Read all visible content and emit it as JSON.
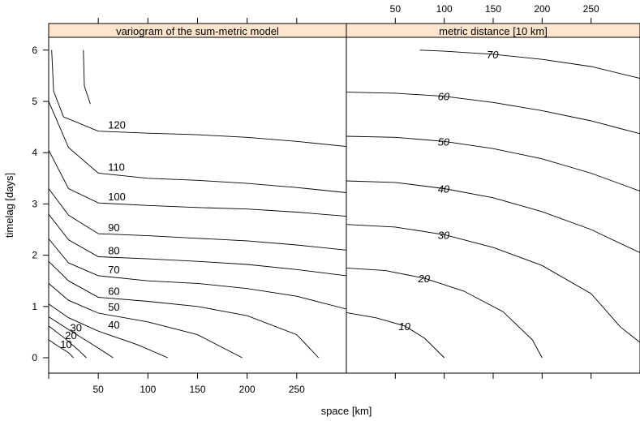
{
  "chart_data": [
    {
      "type": "contour",
      "title": "variogram of the sum-metric model",
      "xlabel": "space [km]",
      "ylabel": "timelag [days]",
      "xlim": [
        0,
        300
      ],
      "ylim": [
        -0.3,
        6.25
      ],
      "x_ticks": [
        50,
        100,
        150,
        200,
        250
      ],
      "y_ticks": [
        0,
        1,
        2,
        3,
        4,
        5,
        6
      ],
      "levels": [
        {
          "label": "10",
          "points": [
            [
              0,
              0.35
            ],
            [
              10,
              0.22
            ],
            [
              20,
              0.1
            ],
            [
              25,
              0
            ]
          ]
        },
        {
          "label": "20",
          "points": [
            [
              0,
              0.62
            ],
            [
              15,
              0.4
            ],
            [
              30,
              0.15
            ],
            [
              38,
              0
            ]
          ]
        },
        {
          "label": "30",
          "points": [
            [
              0,
              0.8
            ],
            [
              20,
              0.55
            ],
            [
              45,
              0.25
            ],
            [
              65,
              0
            ]
          ]
        },
        {
          "label": "40",
          "points": [
            [
              0,
              1.05
            ],
            [
              20,
              0.78
            ],
            [
              50,
              0.52
            ],
            [
              90,
              0.25
            ],
            [
              120,
              0
            ]
          ]
        },
        {
          "label": "50",
          "points": [
            [
              0,
              1.45
            ],
            [
              20,
              1.12
            ],
            [
              50,
              0.87
            ],
            [
              100,
              0.7
            ],
            [
              150,
              0.45
            ],
            [
              195,
              0
            ]
          ]
        },
        {
          "label": "60",
          "points": [
            [
              0,
              1.88
            ],
            [
              20,
              1.5
            ],
            [
              50,
              1.18
            ],
            [
              100,
              1.1
            ],
            [
              150,
              1.0
            ],
            [
              200,
              0.82
            ],
            [
              250,
              0.45
            ],
            [
              272,
              0
            ]
          ]
        },
        {
          "label": "70",
          "points": [
            [
              0,
              2.32
            ],
            [
              20,
              1.85
            ],
            [
              50,
              1.6
            ],
            [
              100,
              1.5
            ],
            [
              150,
              1.45
            ],
            [
              200,
              1.35
            ],
            [
              250,
              1.2
            ],
            [
              300,
              0.95
            ]
          ]
        },
        {
          "label": "80",
          "points": [
            [
              0,
              2.8
            ],
            [
              20,
              2.3
            ],
            [
              50,
              1.97
            ],
            [
              100,
              1.93
            ],
            [
              150,
              1.88
            ],
            [
              200,
              1.82
            ],
            [
              250,
              1.72
            ],
            [
              300,
              1.6
            ]
          ]
        },
        {
          "label": "90",
          "points": [
            [
              0,
              3.3
            ],
            [
              20,
              2.78
            ],
            [
              50,
              2.42
            ],
            [
              100,
              2.38
            ],
            [
              150,
              2.33
            ],
            [
              200,
              2.28
            ],
            [
              250,
              2.2
            ],
            [
              300,
              2.1
            ]
          ]
        },
        {
          "label": "100",
          "points": [
            [
              0,
              4.05
            ],
            [
              20,
              3.3
            ],
            [
              50,
              3.02
            ],
            [
              100,
              2.97
            ],
            [
              150,
              2.93
            ],
            [
              200,
              2.9
            ],
            [
              250,
              2.84
            ],
            [
              300,
              2.76
            ]
          ]
        },
        {
          "label": "110",
          "points": [
            [
              0,
              5.0
            ],
            [
              20,
              4.1
            ],
            [
              50,
              3.6
            ],
            [
              100,
              3.5
            ],
            [
              150,
              3.46
            ],
            [
              200,
              3.4
            ],
            [
              250,
              3.32
            ],
            [
              300,
              3.22
            ]
          ]
        },
        {
          "label": "120",
          "points": [
            [
              3,
              6.0
            ],
            [
              5,
              5.2
            ],
            [
              15,
              4.7
            ],
            [
              50,
              4.42
            ],
            [
              100,
              4.38
            ],
            [
              150,
              4.35
            ],
            [
              200,
              4.3
            ],
            [
              250,
              4.22
            ],
            [
              300,
              4.12
            ]
          ]
        },
        {
          "label": "",
          "points": [
            [
              35,
              6.0
            ],
            [
              36,
              5.3
            ],
            [
              42,
              4.95
            ]
          ]
        }
      ]
    },
    {
      "type": "contour",
      "title": "metric distance [10 km]",
      "xlabel": "space [km]",
      "xlim": [
        0,
        300
      ],
      "ylim": [
        -0.3,
        6.25
      ],
      "x_ticks": [
        50,
        100,
        150,
        200,
        250
      ],
      "levels": [
        {
          "label": "10",
          "points": [
            [
              0,
              0.88
            ],
            [
              30,
              0.78
            ],
            [
              60,
              0.62
            ],
            [
              80,
              0.38
            ],
            [
              100,
              0
            ]
          ]
        },
        {
          "label": "20",
          "points": [
            [
              0,
              1.75
            ],
            [
              40,
              1.7
            ],
            [
              80,
              1.55
            ],
            [
              120,
              1.3
            ],
            [
              160,
              0.9
            ],
            [
              190,
              0.35
            ],
            [
              200,
              0
            ]
          ]
        },
        {
          "label": "30",
          "points": [
            [
              0,
              2.6
            ],
            [
              50,
              2.55
            ],
            [
              100,
              2.4
            ],
            [
              150,
              2.15
            ],
            [
              200,
              1.8
            ],
            [
              250,
              1.25
            ],
            [
              280,
              0.6
            ],
            [
              300,
              0.3
            ]
          ]
        },
        {
          "label": "40",
          "points": [
            [
              0,
              3.45
            ],
            [
              50,
              3.42
            ],
            [
              100,
              3.3
            ],
            [
              150,
              3.12
            ],
            [
              200,
              2.85
            ],
            [
              250,
              2.5
            ],
            [
              300,
              2.05
            ]
          ]
        },
        {
          "label": "50",
          "points": [
            [
              0,
              4.32
            ],
            [
              50,
              4.3
            ],
            [
              100,
              4.22
            ],
            [
              150,
              4.08
            ],
            [
              200,
              3.88
            ],
            [
              250,
              3.6
            ],
            [
              300,
              3.25
            ]
          ]
        },
        {
          "label": "60",
          "points": [
            [
              0,
              5.18
            ],
            [
              50,
              5.16
            ],
            [
              100,
              5.1
            ],
            [
              150,
              4.98
            ],
            [
              200,
              4.82
            ],
            [
              250,
              4.62
            ],
            [
              300,
              4.37
            ]
          ]
        },
        {
          "label": "70",
          "points": [
            [
              75,
              6.0
            ],
            [
              100,
              5.98
            ],
            [
              150,
              5.92
            ],
            [
              200,
              5.82
            ],
            [
              250,
              5.68
            ],
            [
              300,
              5.45
            ]
          ]
        }
      ]
    }
  ]
}
